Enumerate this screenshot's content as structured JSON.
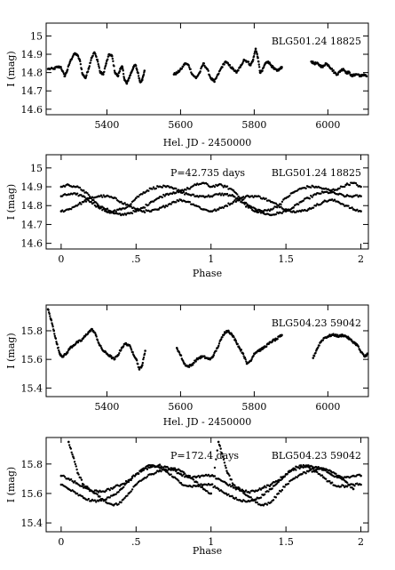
{
  "chart_data": [
    {
      "type": "scatter",
      "star": "BLG501.24 18825",
      "period_label": "",
      "xlabel": "Hel. JD - 2450000",
      "ylabel": "I (mag)",
      "xlim": [
        5235,
        6110
      ],
      "ylim": [
        15.07,
        14.57
      ],
      "y_inverted": true,
      "xticks": [
        5400,
        5600,
        5800,
        6000
      ],
      "xtick_labels": [
        "5400",
        "5600",
        "5800",
        "6000"
      ],
      "yticks": [
        14.6,
        14.7,
        14.8,
        14.9,
        15.0
      ],
      "ytick_labels": [
        "14.6",
        "14.7",
        "14.8",
        "14.9",
        "15"
      ],
      "series": [
        {
          "x": [
            5240,
            5255,
            5265,
            5275,
            5285,
            5292,
            5300,
            5310,
            5318,
            5326,
            5334,
            5342,
            5350,
            5358,
            5366,
            5374,
            5382,
            5390,
            5398,
            5406,
            5414,
            5422,
            5430,
            5436,
            5442,
            5448,
            5454,
            5460,
            5466,
            5472,
            5478,
            5484,
            5490,
            5496,
            5502,
            5582,
            5592,
            5602,
            5612,
            5622,
            5632,
            5642,
            5652,
            5662,
            5672,
            5682,
            5692,
            5702,
            5712,
            5722,
            5732,
            5742,
            5752,
            5762,
            5772,
            5782,
            5790,
            5797,
            5804,
            5810,
            5816,
            5822,
            5830,
            5838,
            5846,
            5854,
            5862,
            5870,
            5875,
            5955,
            5962,
            5970,
            5978,
            5986,
            5994,
            6002,
            6010,
            6018,
            6026,
            6034,
            6042,
            6050,
            6058,
            6066,
            6074,
            6082,
            6090,
            6098,
            6105
          ],
          "y": [
            14.82,
            14.82,
            14.83,
            14.83,
            14.78,
            14.81,
            14.86,
            14.9,
            14.9,
            14.87,
            14.79,
            14.77,
            14.82,
            14.88,
            14.91,
            14.87,
            14.8,
            14.79,
            14.85,
            14.9,
            14.89,
            14.8,
            14.78,
            14.82,
            14.83,
            14.76,
            14.74,
            14.77,
            14.8,
            14.83,
            14.84,
            14.8,
            14.75,
            14.76,
            14.81,
            14.79,
            14.8,
            14.82,
            14.85,
            14.84,
            14.79,
            14.77,
            14.8,
            14.85,
            14.82,
            14.77,
            14.75,
            14.79,
            14.83,
            14.86,
            14.84,
            14.82,
            14.8,
            14.83,
            14.87,
            14.86,
            14.84,
            14.87,
            14.93,
            14.88,
            14.8,
            14.81,
            14.85,
            14.86,
            14.84,
            14.82,
            14.81,
            14.82,
            14.83,
            14.86,
            14.85,
            14.85,
            14.84,
            14.83,
            14.85,
            14.84,
            14.82,
            14.8,
            14.79,
            14.81,
            14.82,
            14.8,
            14.8,
            14.78,
            14.79,
            14.79,
            14.78,
            14.79,
            14.78
          ]
        }
      ]
    },
    {
      "type": "scatter",
      "star": "BLG501.24 18825",
      "period_label": "P=42.735 days",
      "xlabel": "Phase",
      "ylabel": "I (mag)",
      "xlim": [
        -0.1,
        2.05
      ],
      "ylim": [
        15.07,
        14.57
      ],
      "y_inverted": true,
      "xticks": [
        0,
        0.5,
        1,
        1.5,
        2
      ],
      "xtick_labels": [
        "0",
        ".5",
        "1",
        "1.5",
        "2"
      ],
      "yticks": [
        14.6,
        14.7,
        14.8,
        14.9,
        15.0
      ],
      "ytick_labels": [
        "14.6",
        "14.7",
        "14.8",
        "14.9",
        "15"
      ],
      "series": [
        {
          "name": "",
          "x": [
            0.0,
            0.05,
            0.1,
            0.15,
            0.2,
            0.25,
            0.3,
            0.35,
            0.4,
            0.45,
            0.5,
            0.55,
            0.6,
            0.65,
            0.7,
            0.75,
            0.8,
            0.85,
            0.9,
            0.95,
            1.0,
            1.05,
            1.1,
            1.15,
            1.2,
            1.25,
            1.3,
            1.35,
            1.4,
            1.45,
            1.5,
            1.55,
            1.6,
            1.65,
            1.7,
            1.75,
            1.8,
            1.85,
            1.9,
            1.95,
            2.0
          ],
          "y": [
            14.85,
            14.86,
            14.86,
            14.85,
            14.82,
            14.79,
            14.77,
            14.76,
            14.75,
            14.76,
            14.77,
            14.79,
            14.82,
            14.84,
            14.86,
            14.87,
            14.87,
            14.86,
            14.85,
            14.85,
            14.85,
            14.86,
            14.86,
            14.85,
            14.82,
            14.79,
            14.77,
            14.76,
            14.75,
            14.76,
            14.77,
            14.79,
            14.82,
            14.84,
            14.86,
            14.87,
            14.87,
            14.86,
            14.85,
            14.85,
            14.85
          ]
        },
        {
          "name": "",
          "x": [
            0.0,
            0.05,
            0.1,
            0.15,
            0.2,
            0.25,
            0.3,
            0.35,
            0.4,
            0.45,
            0.5,
            0.55,
            0.6,
            0.65,
            0.7,
            0.75,
            0.8,
            0.85,
            0.9,
            0.95,
            1.0,
            1.05,
            1.1,
            1.15,
            1.2,
            1.25,
            1.3,
            1.35,
            1.4,
            1.45,
            1.5,
            1.55,
            1.6,
            1.65,
            1.7,
            1.75,
            1.8,
            1.85,
            1.9,
            1.95,
            2.0
          ],
          "y": [
            14.77,
            14.78,
            14.8,
            14.82,
            14.84,
            14.85,
            14.85,
            14.84,
            14.82,
            14.8,
            14.78,
            14.77,
            14.77,
            14.78,
            14.8,
            14.82,
            14.83,
            14.82,
            14.8,
            14.78,
            14.77,
            14.78,
            14.8,
            14.82,
            14.84,
            14.85,
            14.85,
            14.84,
            14.82,
            14.8,
            14.78,
            14.77,
            14.77,
            14.78,
            14.8,
            14.82,
            14.83,
            14.82,
            14.8,
            14.78,
            14.77
          ]
        },
        {
          "name": "",
          "x": [
            0.0,
            0.05,
            0.1,
            0.15,
            0.2,
            0.25,
            0.3,
            0.35,
            0.4,
            0.45,
            0.5,
            0.55,
            0.6,
            0.65,
            0.7,
            0.75,
            0.8,
            0.85,
            0.9,
            0.95,
            1.0,
            1.05,
            1.1,
            1.15,
            1.2,
            1.25,
            1.3,
            1.35,
            1.4,
            1.45,
            1.5,
            1.55,
            1.6,
            1.65,
            1.7,
            1.75,
            1.8,
            1.85,
            1.9,
            1.95,
            2.0
          ],
          "y": [
            14.9,
            14.91,
            14.9,
            14.88,
            14.84,
            14.8,
            14.78,
            14.77,
            14.78,
            14.8,
            14.84,
            14.87,
            14.89,
            14.9,
            14.9,
            14.89,
            14.88,
            14.89,
            14.91,
            14.92,
            14.9,
            14.91,
            14.9,
            14.88,
            14.84,
            14.8,
            14.78,
            14.77,
            14.78,
            14.8,
            14.84,
            14.87,
            14.89,
            14.9,
            14.9,
            14.89,
            14.88,
            14.89,
            14.91,
            14.92,
            14.9
          ]
        }
      ]
    },
    {
      "type": "scatter",
      "star": "BLG504.23 59042",
      "period_label": "",
      "xlabel": "Hel. JD - 2450000",
      "ylabel": "I (mag)",
      "xlim": [
        5235,
        6110
      ],
      "ylim": [
        15.98,
        15.34
      ],
      "y_inverted": true,
      "xticks": [
        5400,
        5600,
        5800,
        6000
      ],
      "xtick_labels": [
        "5400",
        "5600",
        "5800",
        "6000"
      ],
      "yticks": [
        15.4,
        15.6,
        15.8
      ],
      "ytick_labels": [
        "15.4",
        "15.6",
        "15.8"
      ],
      "series": [
        {
          "x": [
            5240,
            5248,
            5256,
            5264,
            5272,
            5280,
            5290,
            5300,
            5310,
            5320,
            5330,
            5340,
            5350,
            5360,
            5370,
            5380,
            5390,
            5400,
            5410,
            5420,
            5430,
            5440,
            5450,
            5460,
            5470,
            5480,
            5488,
            5496,
            5504,
            5590,
            5600,
            5610,
            5620,
            5630,
            5640,
            5650,
            5660,
            5670,
            5680,
            5690,
            5700,
            5710,
            5720,
            5730,
            5740,
            5750,
            5760,
            5770,
            5780,
            5790,
            5800,
            5810,
            5820,
            5830,
            5840,
            5850,
            5860,
            5870,
            5875,
            5960,
            5970,
            5980,
            5990,
            6000,
            6010,
            6020,
            6030,
            6040,
            6050,
            6060,
            6070,
            6080,
            6090,
            6100,
            6108
          ],
          "y": [
            15.95,
            15.88,
            15.8,
            15.71,
            15.64,
            15.62,
            15.64,
            15.68,
            15.7,
            15.72,
            15.73,
            15.76,
            15.79,
            15.81,
            15.77,
            15.7,
            15.66,
            15.64,
            15.62,
            15.6,
            15.63,
            15.68,
            15.71,
            15.7,
            15.65,
            15.6,
            15.53,
            15.56,
            15.66,
            15.68,
            15.63,
            15.57,
            15.55,
            15.56,
            15.59,
            15.61,
            15.62,
            15.61,
            15.6,
            15.63,
            15.68,
            15.74,
            15.79,
            15.8,
            15.77,
            15.73,
            15.68,
            15.64,
            15.57,
            15.59,
            15.64,
            15.66,
            15.67,
            15.69,
            15.71,
            15.73,
            15.74,
            15.76,
            15.77,
            15.61,
            15.67,
            15.72,
            15.75,
            15.76,
            15.77,
            15.77,
            15.76,
            15.77,
            15.76,
            15.74,
            15.72,
            15.7,
            15.65,
            15.62,
            15.64
          ]
        }
      ]
    },
    {
      "type": "scatter",
      "star": "BLG504.23 59042",
      "period_label": "P=172.4 days",
      "xlabel": "Phase",
      "ylabel": "I (mag)",
      "xlim": [
        -0.1,
        2.05
      ],
      "ylim": [
        15.98,
        15.34
      ],
      "y_inverted": true,
      "xticks": [
        0,
        0.5,
        1,
        1.5,
        2
      ],
      "xtick_labels": [
        "0",
        ".5",
        "1",
        "1.5",
        "2"
      ],
      "yticks": [
        15.4,
        15.6,
        15.8
      ],
      "ytick_labels": [
        "15.4",
        "15.6",
        "15.8"
      ],
      "series": [
        {
          "name": "",
          "x": [
            0.0,
            0.05,
            0.1,
            0.15,
            0.2,
            0.25,
            0.3,
            0.35,
            0.4,
            0.45,
            0.5,
            0.55,
            0.6,
            0.65,
            0.7,
            0.75,
            0.8,
            0.85,
            0.9,
            0.95,
            1.0,
            1.05,
            1.1,
            1.15,
            1.2,
            1.25,
            1.3,
            1.35,
            1.4,
            1.45,
            1.5,
            1.55,
            1.6,
            1.65,
            1.7,
            1.75,
            1.8,
            1.85,
            1.9,
            1.95,
            2.0
          ],
          "y": [
            15.66,
            15.63,
            15.6,
            15.57,
            15.55,
            15.55,
            15.56,
            15.59,
            15.63,
            15.68,
            15.73,
            15.77,
            15.79,
            15.78,
            15.75,
            15.71,
            15.67,
            15.65,
            15.65,
            15.66,
            15.66,
            15.63,
            15.6,
            15.57,
            15.55,
            15.55,
            15.56,
            15.59,
            15.63,
            15.68,
            15.73,
            15.77,
            15.79,
            15.78,
            15.75,
            15.71,
            15.67,
            15.65,
            15.65,
            15.66,
            15.66
          ]
        },
        {
          "name": "",
          "x": [
            0.0,
            0.05,
            0.1,
            0.15,
            0.2,
            0.25,
            0.3,
            0.35,
            0.4,
            0.45,
            0.5,
            0.55,
            0.6,
            0.65,
            0.7,
            0.75,
            0.8,
            0.85,
            0.9,
            0.95,
            1.0,
            1.05,
            1.1,
            1.15,
            1.2,
            1.25,
            1.3,
            1.35,
            1.4,
            1.45,
            1.5,
            1.55,
            1.6,
            1.65,
            1.7,
            1.75,
            1.8,
            1.85,
            1.9,
            1.95,
            2.0
          ],
          "y": [
            15.72,
            15.7,
            15.67,
            15.64,
            15.62,
            15.61,
            15.62,
            15.64,
            15.66,
            15.69,
            15.73,
            15.76,
            15.78,
            15.79,
            15.78,
            15.76,
            15.73,
            15.71,
            15.71,
            15.72,
            15.72,
            15.7,
            15.67,
            15.64,
            15.62,
            15.61,
            15.62,
            15.64,
            15.66,
            15.69,
            15.73,
            15.76,
            15.78,
            15.79,
            15.78,
            15.76,
            15.73,
            15.71,
            15.71,
            15.72,
            15.72
          ]
        },
        {
          "name": "",
          "x": [
            0.05,
            0.08,
            0.11,
            0.15,
            0.2,
            0.25,
            0.3,
            0.35,
            0.4,
            0.45,
            0.5,
            0.55,
            0.6,
            0.65,
            0.7,
            0.75,
            0.8,
            0.85,
            0.9,
            0.95,
            1.0,
            1.05,
            1.08,
            1.11,
            1.15,
            1.2,
            1.25,
            1.3,
            1.35,
            1.4,
            1.45,
            1.5,
            1.55,
            1.6,
            1.65,
            1.7,
            1.75,
            1.8,
            1.85,
            1.9,
            1.95
          ],
          "y": [
            15.95,
            15.85,
            15.74,
            15.66,
            15.62,
            15.58,
            15.54,
            15.52,
            15.54,
            15.6,
            15.66,
            15.7,
            15.73,
            15.75,
            15.76,
            15.77,
            15.75,
            15.72,
            15.68,
            15.63,
            15.6,
            15.95,
            15.85,
            15.74,
            15.66,
            15.62,
            15.58,
            15.54,
            15.52,
            15.54,
            15.6,
            15.66,
            15.7,
            15.73,
            15.75,
            15.76,
            15.77,
            15.75,
            15.72,
            15.68,
            15.63
          ]
        }
      ]
    }
  ]
}
